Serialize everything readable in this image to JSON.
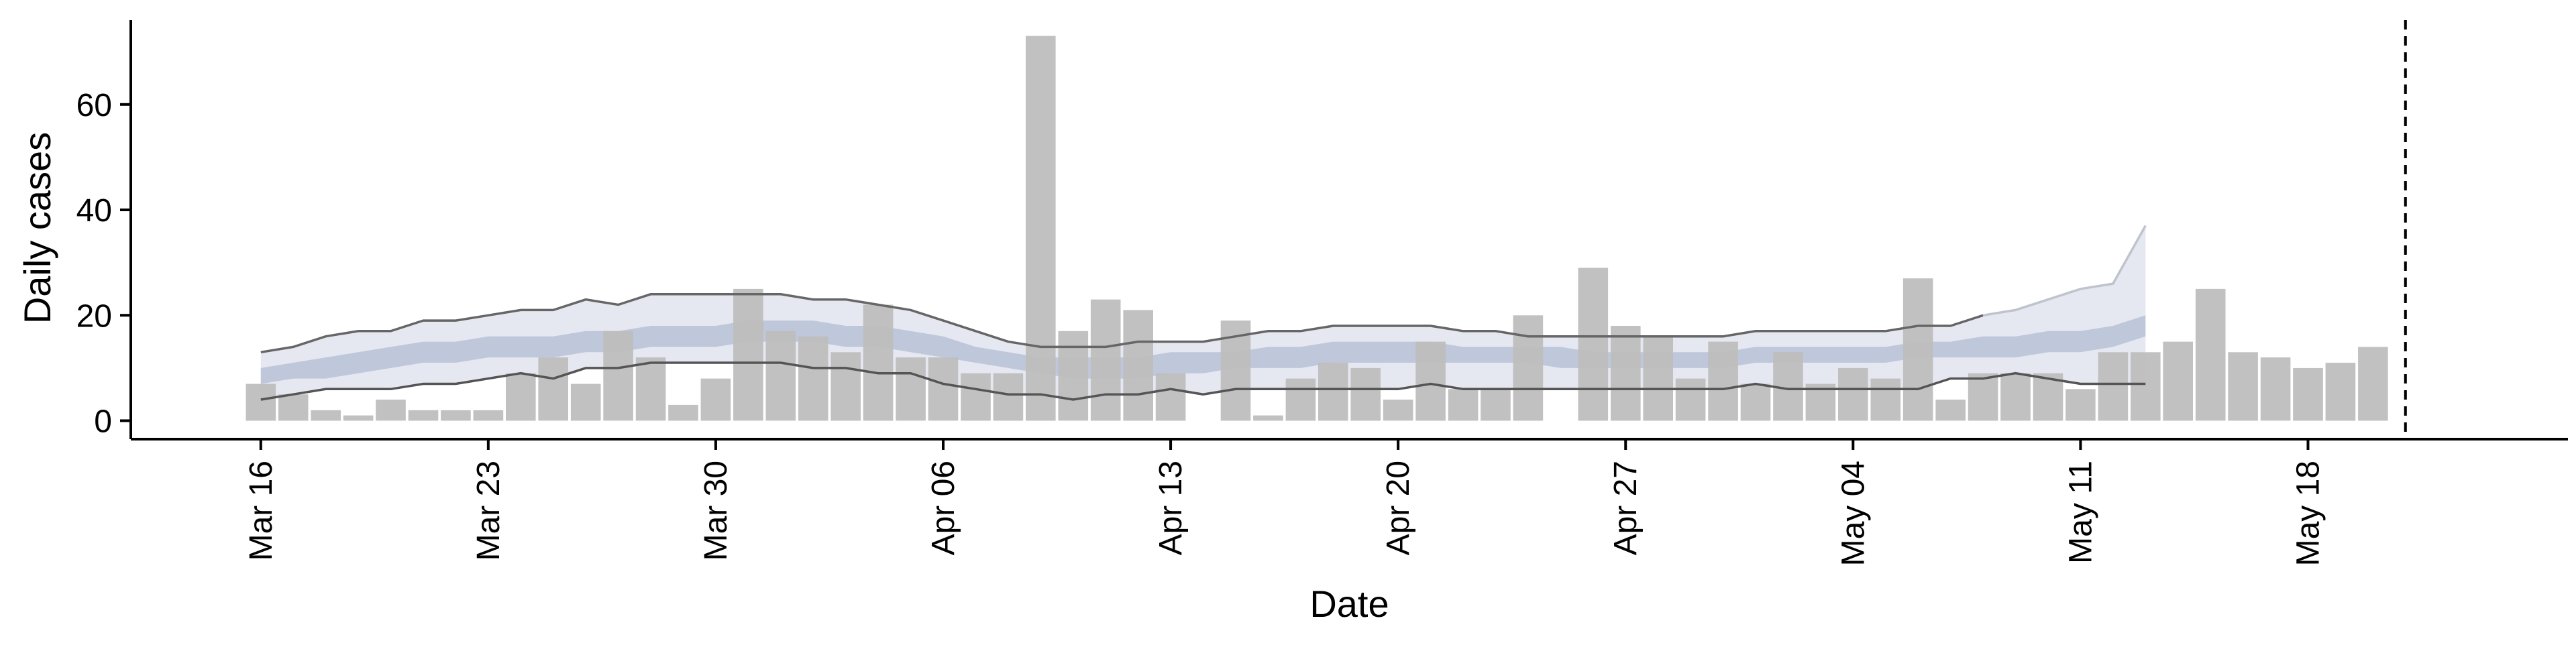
{
  "chart_data": {
    "type": "bar",
    "title": "",
    "xlabel": "Date",
    "ylabel": "Daily cases",
    "ylim": [
      -3.5,
      76
    ],
    "yticks": [
      0,
      20,
      40,
      60
    ],
    "xticks": [
      {
        "date": "2020-03-16",
        "label": "Mar 16"
      },
      {
        "date": "2020-03-23",
        "label": "Mar 23"
      },
      {
        "date": "2020-03-30",
        "label": "Mar 30"
      },
      {
        "date": "2020-04-06",
        "label": "Apr 06"
      },
      {
        "date": "2020-04-13",
        "label": "Apr 13"
      },
      {
        "date": "2020-04-20",
        "label": "Apr 20"
      },
      {
        "date": "2020-04-27",
        "label": "Apr 27"
      },
      {
        "date": "2020-05-04",
        "label": "May 04"
      },
      {
        "date": "2020-05-11",
        "label": "May 11"
      },
      {
        "date": "2020-05-18",
        "label": "May 18"
      }
    ],
    "xlim": [
      "2020-03-12",
      "2020-05-26"
    ],
    "reference_line": {
      "date": "2020-05-21",
      "style": "dashed"
    },
    "grid": false,
    "series": [
      {
        "kind": "bar",
        "dates": [
          "2020-03-16",
          "2020-03-17",
          "2020-03-18",
          "2020-03-19",
          "2020-03-20",
          "2020-03-21",
          "2020-03-22",
          "2020-03-23",
          "2020-03-24",
          "2020-03-25",
          "2020-03-26",
          "2020-03-27",
          "2020-03-28",
          "2020-03-29",
          "2020-03-30",
          "2020-03-31",
          "2020-04-01",
          "2020-04-02",
          "2020-04-03",
          "2020-04-04",
          "2020-04-05",
          "2020-04-06",
          "2020-04-07",
          "2020-04-08",
          "2020-04-09",
          "2020-04-10",
          "2020-04-11",
          "2020-04-12",
          "2020-04-13",
          "2020-04-14",
          "2020-04-15",
          "2020-04-16",
          "2020-04-17",
          "2020-04-18",
          "2020-04-19",
          "2020-04-20",
          "2020-04-21",
          "2020-04-22",
          "2020-04-23",
          "2020-04-24",
          "2020-04-25",
          "2020-04-26",
          "2020-04-27",
          "2020-04-28",
          "2020-04-29",
          "2020-04-30",
          "2020-05-01",
          "2020-05-02",
          "2020-05-03",
          "2020-05-04",
          "2020-05-05",
          "2020-05-06",
          "2020-05-07",
          "2020-05-08",
          "2020-05-09",
          "2020-05-10",
          "2020-05-11",
          "2020-05-12",
          "2020-05-13",
          "2020-05-14",
          "2020-05-15",
          "2020-05-16",
          "2020-05-17",
          "2020-05-18",
          "2020-05-19",
          "2020-05-20",
          "2020-05-21",
          "2020-05-22"
        ],
        "values": [
          7,
          5,
          2,
          1,
          4,
          2,
          2,
          2,
          9,
          12,
          7,
          17,
          12,
          3,
          8,
          25,
          17,
          16,
          13,
          22,
          12,
          12,
          9,
          9,
          73,
          17,
          23,
          21,
          9,
          0,
          19,
          1,
          8,
          11,
          10,
          4,
          15,
          6,
          6,
          20,
          0,
          29,
          18,
          16,
          8,
          15,
          7,
          13,
          7,
          10,
          8,
          27,
          4,
          9,
          9,
          9,
          6,
          13,
          13,
          15,
          25,
          13,
          12,
          10,
          11,
          14,
          0,
          0
        ],
        "color": "#bebebe"
      },
      {
        "kind": "band",
        "label_on_chart": "",
        "dates": [
          "2020-03-16",
          "2020-03-17",
          "2020-03-18",
          "2020-03-19",
          "2020-03-20",
          "2020-03-21",
          "2020-03-22",
          "2020-03-23",
          "2020-03-24",
          "2020-03-25",
          "2020-03-26",
          "2020-03-27",
          "2020-03-28",
          "2020-03-29",
          "2020-03-30",
          "2020-03-31",
          "2020-04-01",
          "2020-04-02",
          "2020-04-03",
          "2020-04-04",
          "2020-04-05",
          "2020-04-06",
          "2020-04-07",
          "2020-04-08",
          "2020-04-09",
          "2020-04-10",
          "2020-04-11",
          "2020-04-12",
          "2020-04-13",
          "2020-04-14",
          "2020-04-15",
          "2020-04-16",
          "2020-04-17",
          "2020-04-18",
          "2020-04-19",
          "2020-04-20",
          "2020-04-21",
          "2020-04-22",
          "2020-04-23",
          "2020-04-24",
          "2020-04-25",
          "2020-04-26",
          "2020-04-27",
          "2020-04-28",
          "2020-04-29",
          "2020-04-30",
          "2020-05-01",
          "2020-05-02",
          "2020-05-03",
          "2020-05-04",
          "2020-05-05",
          "2020-05-06",
          "2020-05-07",
          "2020-05-08",
          "2020-05-09",
          "2020-05-10",
          "2020-05-11",
          "2020-05-12",
          "2020-05-13"
        ],
        "lower": [
          4,
          5,
          6,
          6,
          6,
          7,
          7,
          8,
          9,
          8,
          10,
          10,
          11,
          11,
          11,
          11,
          11,
          10,
          10,
          9,
          9,
          7,
          6,
          5,
          5,
          4,
          5,
          5,
          6,
          5,
          6,
          6,
          6,
          6,
          6,
          6,
          7,
          6,
          6,
          6,
          6,
          6,
          6,
          6,
          6,
          6,
          7,
          6,
          6,
          6,
          6,
          6,
          8,
          8,
          9,
          8,
          7,
          7,
          7
        ],
        "upper": [
          13,
          14,
          16,
          17,
          17,
          19,
          19,
          20,
          21,
          21,
          23,
          22,
          24,
          24,
          24,
          24,
          24,
          23,
          23,
          22,
          21,
          19,
          17,
          15,
          14,
          14,
          14,
          15,
          15,
          15,
          16,
          17,
          17,
          18,
          18,
          18,
          18,
          17,
          17,
          16,
          16,
          16,
          16,
          16,
          16,
          16,
          17,
          17,
          17,
          17,
          17,
          18,
          18,
          20,
          21,
          23,
          25,
          26,
          31
        ],
        "upper_end": 37,
        "inner_lower": [
          7,
          8,
          8,
          9,
          10,
          11,
          11,
          12,
          12,
          12,
          13,
          13,
          14,
          14,
          14,
          15,
          15,
          15,
          14,
          14,
          13,
          12,
          11,
          10,
          9,
          8,
          8,
          8,
          9,
          9,
          10,
          10,
          10,
          11,
          11,
          11,
          11,
          11,
          11,
          11,
          10,
          10,
          10,
          10,
          10,
          10,
          11,
          11,
          11,
          11,
          11,
          12,
          12,
          12,
          12,
          13,
          13,
          14,
          16
        ],
        "inner_upper": [
          10,
          11,
          12,
          13,
          14,
          15,
          15,
          16,
          16,
          16,
          17,
          17,
          18,
          18,
          18,
          19,
          19,
          19,
          18,
          18,
          17,
          16,
          14,
          13,
          12,
          12,
          12,
          12,
          13,
          13,
          13,
          14,
          14,
          15,
          15,
          15,
          15,
          14,
          14,
          14,
          14,
          13,
          13,
          13,
          13,
          13,
          14,
          14,
          14,
          14,
          14,
          15,
          15,
          16,
          16,
          17,
          17,
          18,
          20
        ],
        "outer_color": "#e3e6ef",
        "inner_color": "#b7c1d6",
        "line_color": "#666666"
      }
    ]
  }
}
